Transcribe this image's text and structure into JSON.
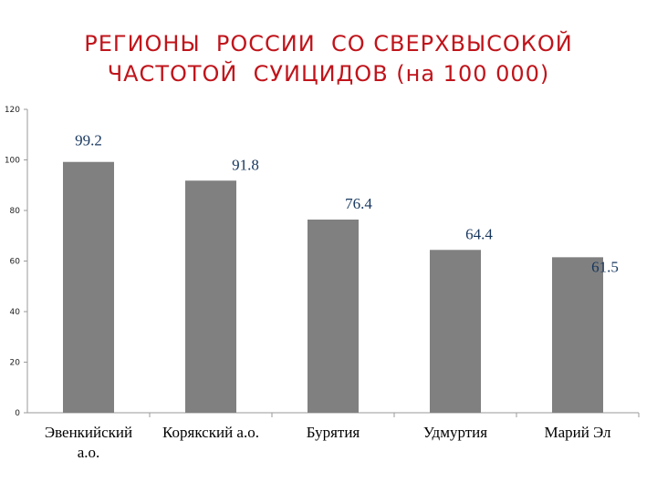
{
  "title": {
    "line1": "РЕГИОНЫ  РОССИИ  СО СВЕРХВЫСОКОЙ",
    "line2": "ЧАСТОТОЙ  СУИЦИДОВ (на 100 000)"
  },
  "colors": {
    "title": "#c0141b",
    "bar": "#808080",
    "data_label": "#17375e"
  },
  "chart_data": {
    "type": "bar",
    "title": "РЕГИОНЫ  РОССИИ  СО СВЕРХВЫСОКОЙ ЧАСТОТОЙ  СУИЦИДОВ (на 100 000)",
    "categories": [
      [
        "Эвенкийский",
        "а.о."
      ],
      [
        "Корякский а.о."
      ],
      [
        "Бурятия"
      ],
      [
        "Удмуртия"
      ],
      [
        "Марий Эл"
      ]
    ],
    "values": [
      99.2,
      91.8,
      76.4,
      64.4,
      61.5
    ],
    "value_labels": [
      "99.2",
      "91.8",
      "76.4",
      "64.4",
      "61.5"
    ],
    "ylim": [
      0,
      120
    ],
    "yticks": [
      0,
      20,
      40,
      60,
      80,
      100,
      120
    ],
    "grid": false,
    "legend": "none"
  }
}
